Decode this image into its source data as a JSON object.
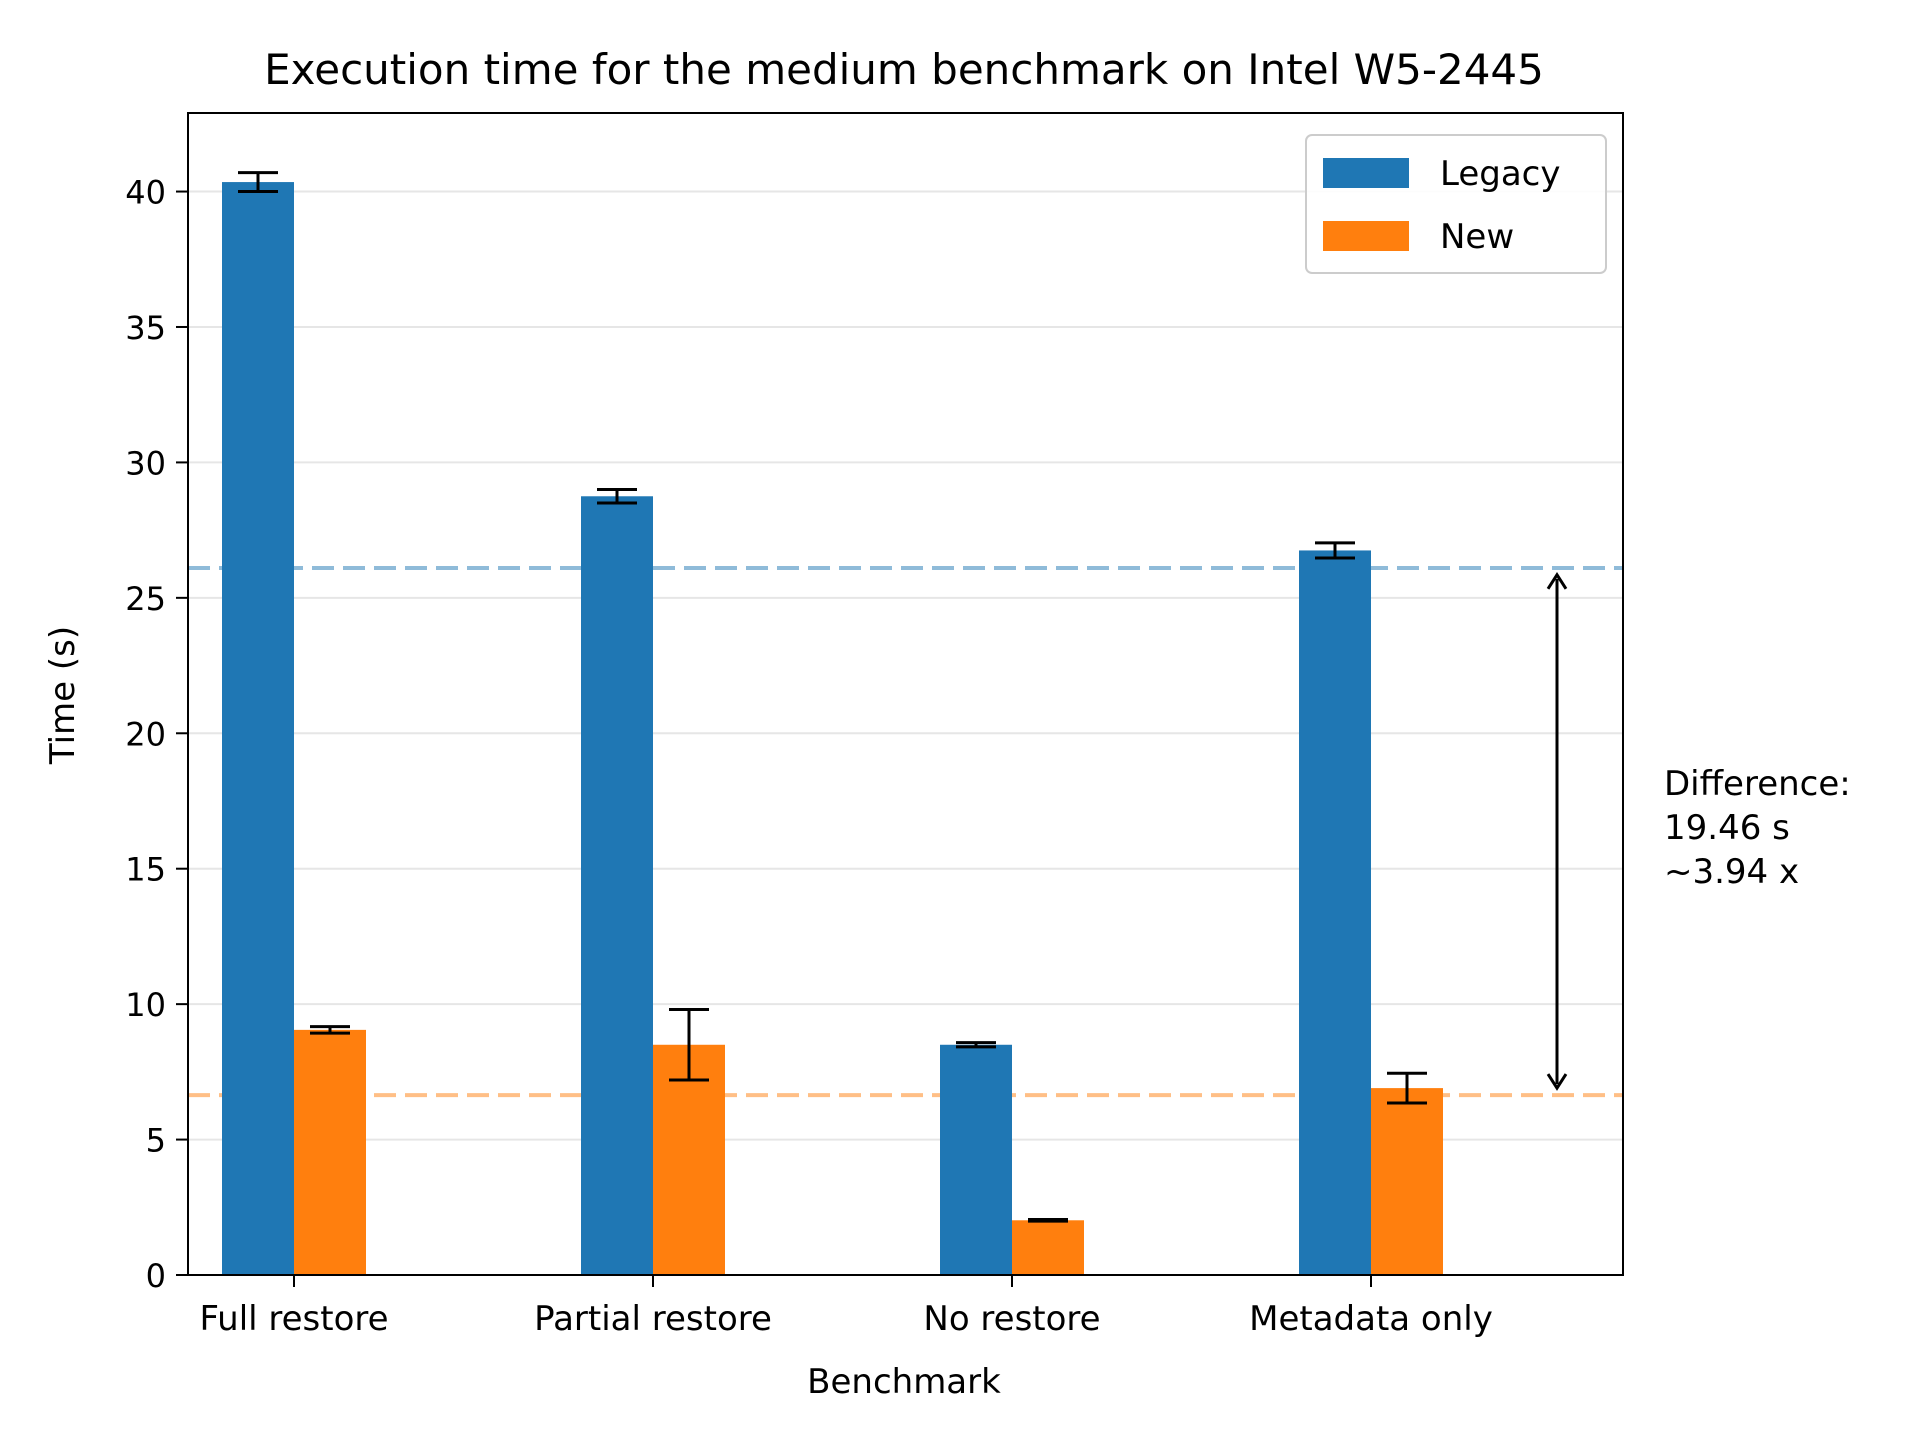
{
  "chart_data": {
    "type": "bar",
    "title": "Execution time for the medium benchmark on Intel W5-2445",
    "xlabel": "Benchmark",
    "ylabel": "Time (s)",
    "ylim": [
      0,
      42.9
    ],
    "yticks": [
      0,
      5,
      10,
      15,
      20,
      25,
      30,
      35,
      40
    ],
    "grid": "horizontal",
    "legend_position": "top-right",
    "categories": [
      "Full restore",
      "Partial restore",
      "No restore",
      "Metadata only"
    ],
    "series": [
      {
        "name": "Legacy",
        "color": "#1f77b4",
        "values": [
          40.35,
          28.75,
          8.5,
          26.75
        ],
        "errors": [
          0.35,
          0.25,
          0.08,
          0.28
        ]
      },
      {
        "name": "New",
        "color": "#ff7f0e",
        "values": [
          9.05,
          8.5,
          2.02,
          6.9
        ],
        "errors": [
          0.12,
          1.3,
          0.03,
          0.55
        ]
      }
    ],
    "reference_lines": [
      {
        "series": "Legacy",
        "value": 26.1,
        "color": "#1f77b4"
      },
      {
        "series": "New",
        "value": 6.64,
        "color": "#ff7f0e"
      }
    ],
    "annotation": {
      "lines": [
        "Difference:",
        "19.46 s",
        "~3.94 x"
      ],
      "arrow_from": 25.85,
      "arrow_to": 6.9
    }
  }
}
